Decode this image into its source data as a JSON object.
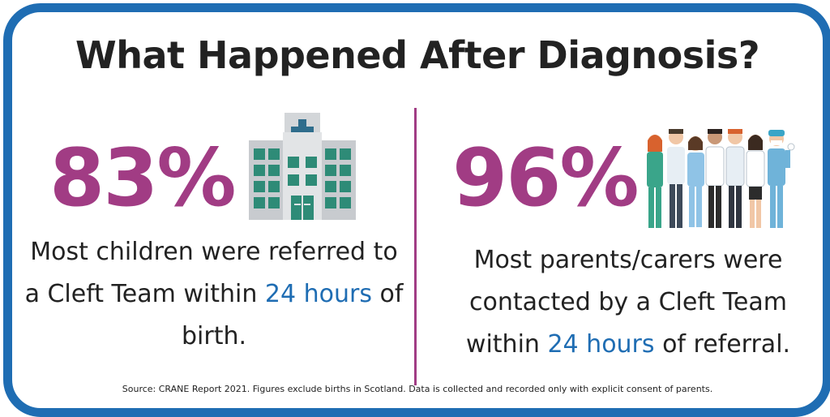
{
  "title": "What Happened After Diagnosis?",
  "left": {
    "percent": "83%",
    "text_before": "Most children were referred to a Cleft Team within ",
    "highlight": "24 hours",
    "text_after": " of birth.",
    "icon": "hospital-icon"
  },
  "right": {
    "percent": "96%",
    "text_before": "Most parents/carers were contacted by a Cleft Team within ",
    "highlight": "24 hours",
    "text_after": " of referral.",
    "icon": "medical-staff-icon"
  },
  "source": "Source: CRANE Report 2021. Figures exclude births in Scotland. Data is collected and recorded only with explicit consent of parents.",
  "colors": {
    "border": "#1f6db3",
    "accent": "#a13c84",
    "highlight": "#1f6db3",
    "text": "#222222"
  }
}
